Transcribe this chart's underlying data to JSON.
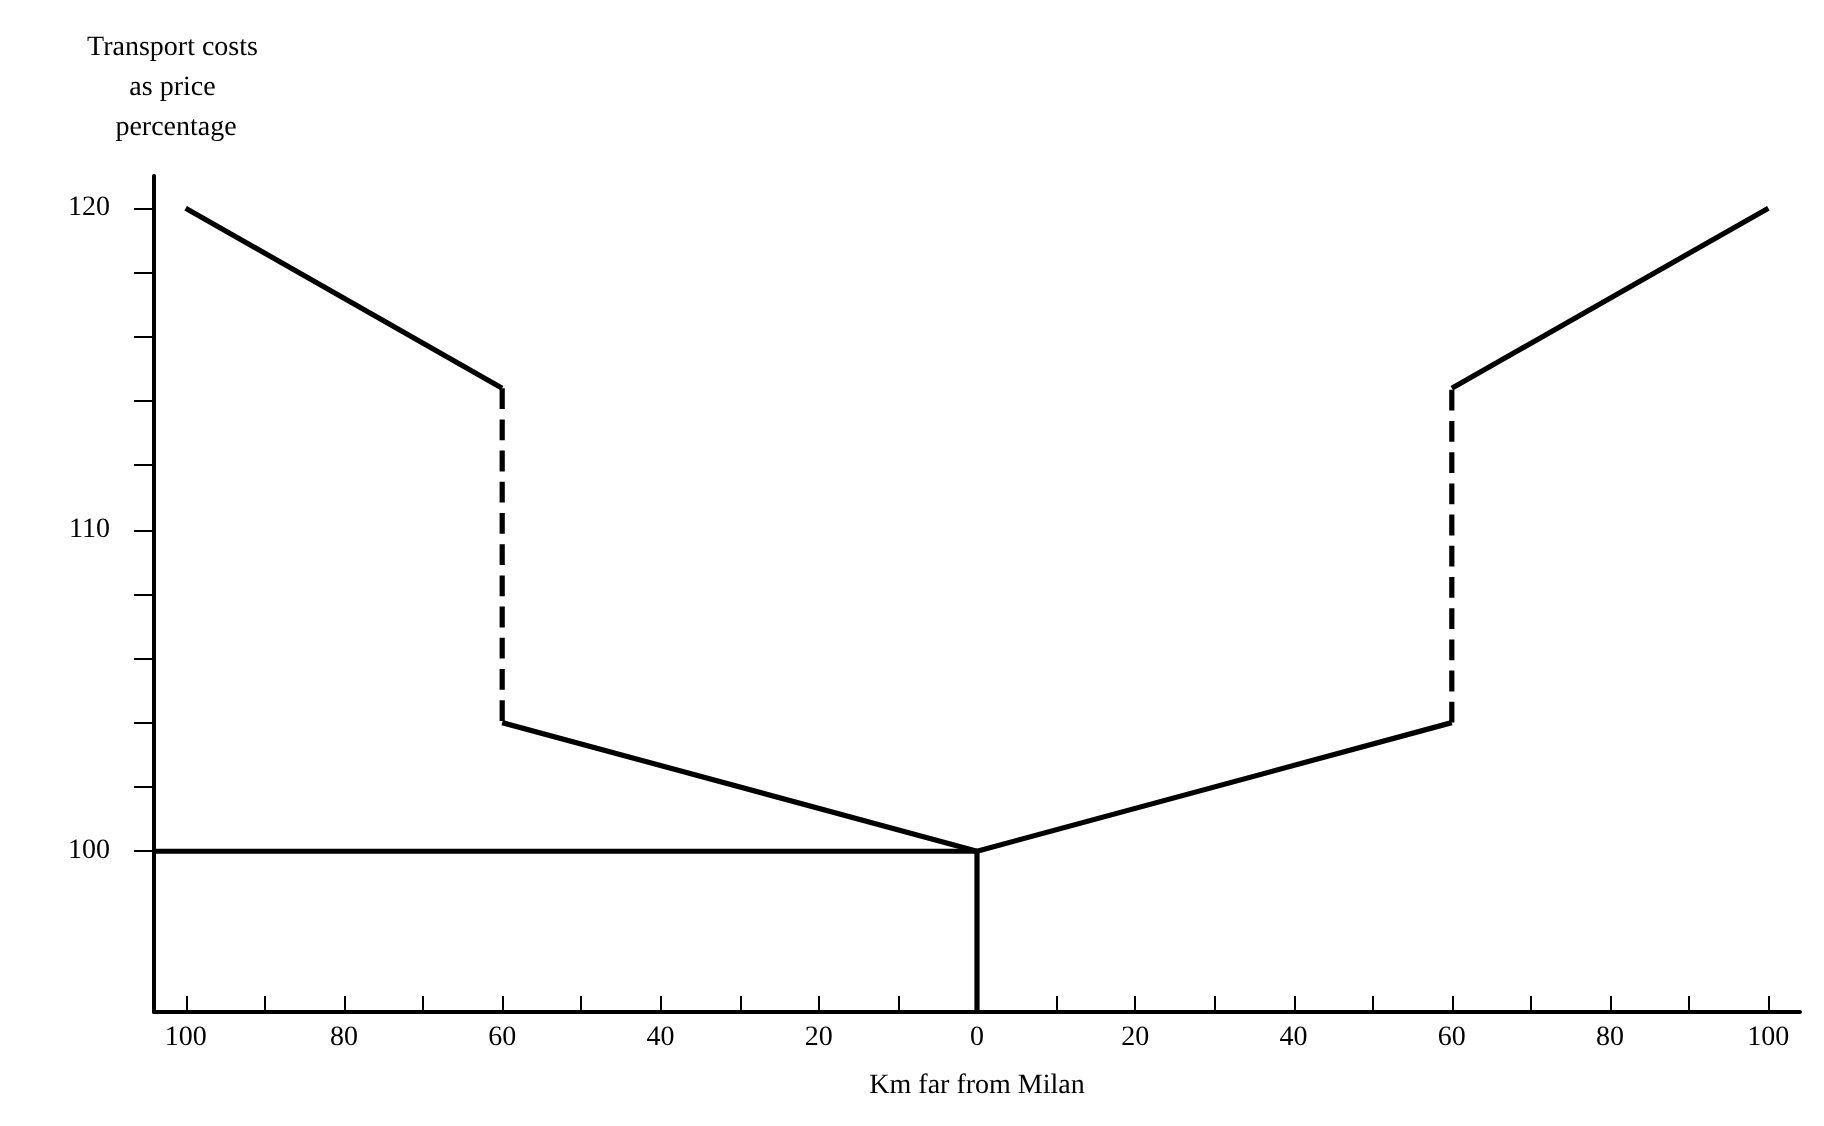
{
  "chart_data": {
    "type": "line",
    "xlabel": "Km far from Milan",
    "ylabel": "Transport costs as price percentage",
    "xlim": [
      -104,
      104
    ],
    "ylim": [
      95,
      121
    ],
    "xticks": [
      {
        "value": -100,
        "label": "100"
      },
      {
        "value": -90,
        "label": null
      },
      {
        "value": -80,
        "label": "80"
      },
      {
        "value": -70,
        "label": null
      },
      {
        "value": -60,
        "label": "60"
      },
      {
        "value": -50,
        "label": null
      },
      {
        "value": -40,
        "label": "40"
      },
      {
        "value": -30,
        "label": null
      },
      {
        "value": -20,
        "label": "20"
      },
      {
        "value": -10,
        "label": null
      },
      0,
      {
        "value": 10,
        "label": null
      },
      20,
      {
        "value": 30,
        "label": null
      },
      40,
      {
        "value": 50,
        "label": null
      },
      60,
      {
        "value": 70,
        "label": null
      },
      80,
      {
        "value": 90,
        "label": null
      },
      100
    ],
    "yticks": [
      100,
      {
        "value": 102,
        "label": null
      },
      {
        "value": 104,
        "label": null
      },
      {
        "value": 106,
        "label": null
      },
      {
        "value": 108,
        "label": null
      },
      110,
      {
        "value": 112,
        "label": null
      },
      {
        "value": 114,
        "label": null
      },
      {
        "value": 116,
        "label": null
      },
      {
        "value": 118,
        "label": null
      },
      120
    ],
    "grid": false,
    "marker": "none",
    "series": [
      {
        "color": "#000000",
        "x": [
          -100,
          -60
        ],
        "values": [
          120,
          114.4
        ],
        "line_style": "solid"
      },
      {
        "color": "#000000",
        "x": [
          -60,
          -60
        ],
        "values": [
          114.4,
          104
        ],
        "line_style": "dashed"
      },
      {
        "color": "#000000",
        "x": [
          -60,
          0,
          60
        ],
        "values": [
          104,
          100,
          104
        ],
        "line_style": "solid"
      },
      {
        "color": "#000000",
        "x": [
          60,
          60
        ],
        "values": [
          104,
          114.4
        ],
        "line_style": "dashed"
      },
      {
        "color": "#000000",
        "x": [
          60,
          100
        ],
        "values": [
          114.4,
          120
        ],
        "line_style": "solid"
      },
      {
        "color": "#000000",
        "x": [
          -104,
          0,
          0
        ],
        "values": [
          100,
          100,
          95
        ],
        "line_style": "solid"
      }
    ]
  }
}
